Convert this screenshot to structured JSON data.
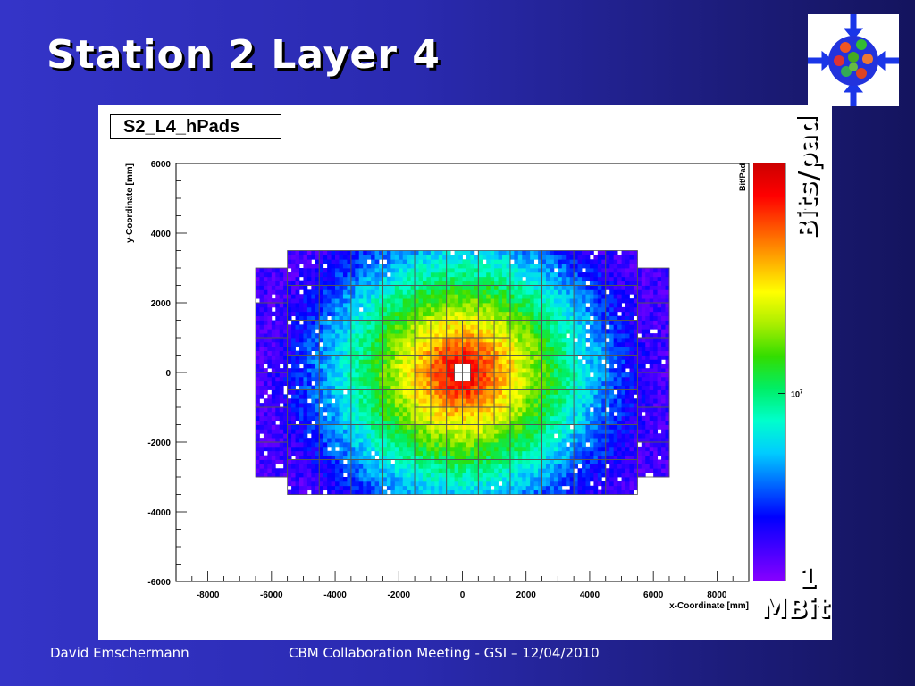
{
  "slide": {
    "title": "Station 2 Layer 4",
    "footer_left": "David Emschermann",
    "footer_center": "CBM Collaboration Meeting - GSI – 12/04/2010",
    "side_label_top": "Bits/pad",
    "side_label_bottom_number": "1",
    "side_label_bottom_unit": "MBit"
  },
  "chart_data": {
    "type": "heatmap",
    "title": "S2_L4_hPads",
    "xlabel": "x-Coordinate [mm]",
    "ylabel": "y-Coordinate [mm]",
    "zlabel": "Bit/Pad",
    "xlim": [
      -9000,
      9000
    ],
    "ylim": [
      -6000,
      6000
    ],
    "x_ticks": [
      -8000,
      -6000,
      -4000,
      -2000,
      0,
      2000,
      4000,
      6000,
      8000
    ],
    "y_ticks": [
      -6000,
      -4000,
      -2000,
      0,
      2000,
      4000,
      6000
    ],
    "z_scale": "log",
    "z_tick_label": "10^7",
    "colors": {
      "palette": [
        "#8800ff",
        "#4400ff",
        "#0000ff",
        "#0066ff",
        "#00ccff",
        "#00ffcc",
        "#00ee66",
        "#33dd00",
        "#aaee00",
        "#ffff00",
        "#ffaa00",
        "#ff5500",
        "#ff0000",
        "#cc0000"
      ]
    },
    "detector": {
      "outer_x": [
        -5500,
        5500
      ],
      "outer_y": [
        -3500,
        3500
      ],
      "side_x": [
        -6500,
        6500
      ],
      "side_y": [
        -3000,
        3000
      ],
      "beam_hole_x": [
        -250,
        250
      ],
      "beam_hole_y": [
        -250,
        250
      ],
      "module_size_mm": 1000,
      "inner_region_mm": 1500,
      "peak_region": "center"
    }
  }
}
